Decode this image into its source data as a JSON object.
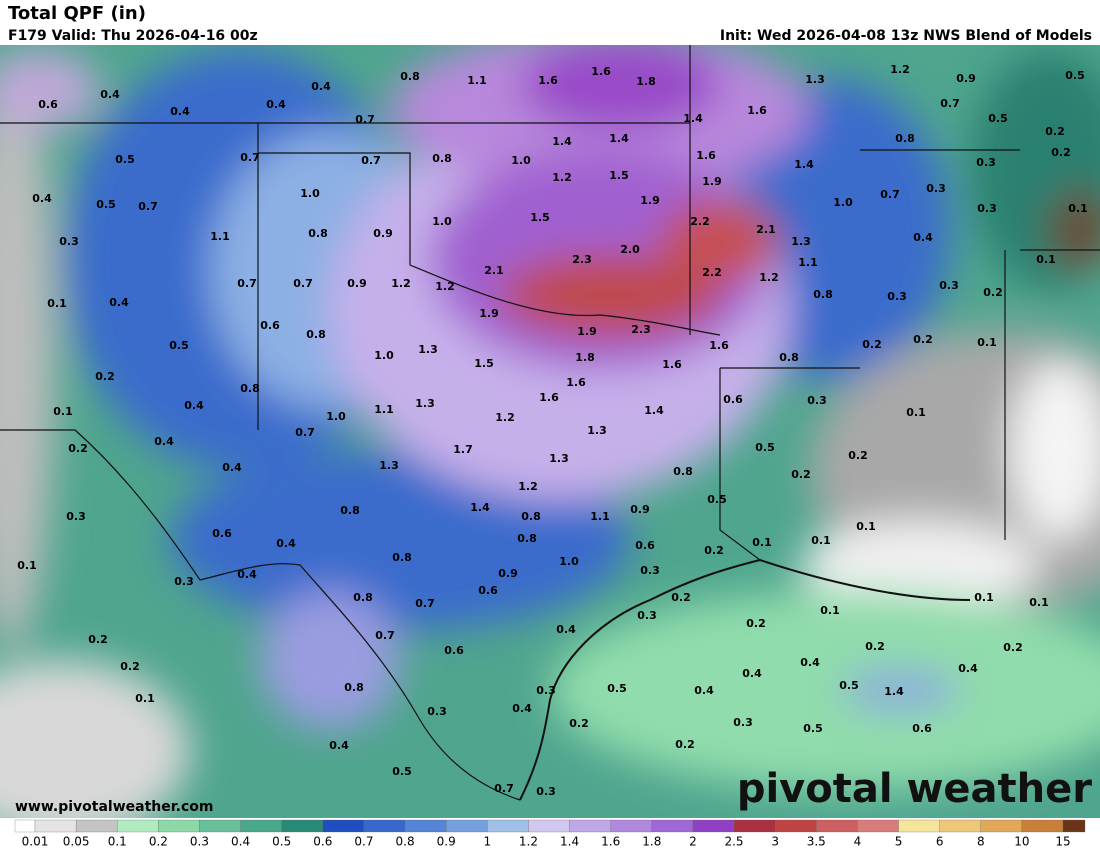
{
  "header": {
    "title": "Total QPF (in)",
    "valid": "F179 Valid: Thu 2026-04-16 00z",
    "init": "Init: Wed 2026-04-08 13z NWS Blend of Models"
  },
  "map": {
    "labels": [
      "0.6",
      "0.4",
      "0.4",
      "0.4",
      "0.4",
      "0.8",
      "1.1",
      "1.6",
      "1.6",
      "1.8",
      "1.3",
      "1.2",
      "0.9",
      "0.5",
      "0.7",
      "1.4",
      "1.6",
      "0.7",
      "0.5",
      "0.2",
      "0.5",
      "0.7",
      "0.7",
      "0.8",
      "1.0",
      "1.4",
      "1.4",
      "1.6",
      "1.4",
      "0.8",
      "0.3",
      "0.2",
      "0.4",
      "0.5",
      "0.7",
      "1.0",
      "1.2",
      "1.5",
      "1.9",
      "1.9",
      "1.0",
      "0.7",
      "0.3",
      "0.3",
      "0.1",
      "0.3",
      "1.1",
      "0.8",
      "0.9",
      "1.0",
      "1.5",
      "2.2",
      "2.1",
      "1.3",
      "0.4",
      "0.1",
      "0.1",
      "0.4",
      "0.7",
      "0.7",
      "0.9",
      "1.2",
      "1.2",
      "2.1",
      "2.3",
      "2.0",
      "2.2",
      "1.2",
      "1.1",
      "0.8",
      "0.3",
      "0.2",
      "0.3",
      "0.6",
      "0.8",
      "1.9",
      "1.9",
      "2.3",
      "1.6",
      "0.2",
      "0.2",
      "0.1",
      "0.5",
      "0.2",
      "0.8",
      "1.0",
      "1.3",
      "1.5",
      "1.8",
      "1.6",
      "0.8",
      "0.1",
      "0.4",
      "1.0",
      "1.1",
      "1.3",
      "1.2",
      "1.6",
      "1.6",
      "1.4",
      "0.6",
      "0.3",
      "0.1",
      "0.2",
      "0.4",
      "0.7",
      "1.3",
      "0.5",
      "1.7",
      "0.4",
      "1.3",
      "1.3",
      "0.8",
      "0.2",
      "0.2",
      "0.3",
      "0.8",
      "1.2",
      "0.5",
      "1.4",
      "0.8",
      "1.1",
      "0.9",
      "0.1",
      "0.6",
      "0.4",
      "0.8",
      "0.6",
      "0.2",
      "0.1",
      "0.1",
      "0.1",
      "0.4",
      "0.8",
      "1.0",
      "0.9",
      "0.3",
      "0.3",
      "0.6",
      "0.8",
      "0.7",
      "0.2",
      "0.1",
      "0.1",
      "0.1",
      "0.3",
      "0.2",
      "0.4",
      "0.7",
      "0.2",
      "0.6",
      "0.2",
      "0.2",
      "0.2",
      "0.4",
      "0.4",
      "0.4",
      "0.8",
      "0.5",
      "0.4",
      "0.5",
      "1.4",
      "0.3",
      "0.1",
      "0.3",
      "0.4",
      "0.2",
      "0.3",
      "0.5",
      "0.6",
      "0.4",
      "0.2",
      "0.5",
      "0.7",
      "0.3"
    ]
  },
  "footer": {
    "website": "www.pivotalweather.com",
    "logo": "pivotal weather"
  },
  "colorbar": {
    "ticks": [
      0.01,
      0.05,
      0.1,
      0.2,
      0.3,
      0.4,
      0.5,
      0.6,
      0.7,
      0.8,
      0.9,
      1,
      1.2,
      1.4,
      1.6,
      1.8,
      2,
      2.5,
      3,
      3.5,
      4,
      5,
      6,
      8,
      10,
      15
    ],
    "colors": [
      "#ffffff",
      "#e4e4e4",
      "#c4c4c4",
      "#b0ecc0",
      "#8cd8a8",
      "#68c09a",
      "#4aa88a",
      "#2a8a78",
      "#1e4ec0",
      "#3868cc",
      "#5684d6",
      "#74a0de",
      "#a0c0e8",
      "#d0c8ee",
      "#c0a8e6",
      "#b088de",
      "#a068d6",
      "#9040c4",
      "#a83040",
      "#c04444",
      "#cc6060",
      "#d87c7c",
      "#f4e49c",
      "#ecc878",
      "#e0a858",
      "#c88038",
      "#6a3418"
    ]
  }
}
